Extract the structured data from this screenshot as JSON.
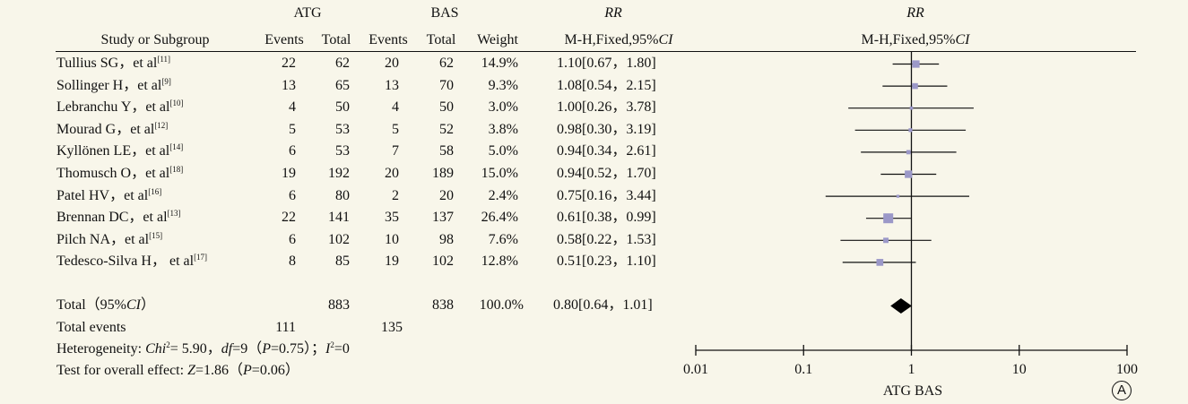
{
  "header": {
    "group1": "ATG",
    "group2": "BAS",
    "rr_left": "RR",
    "rr_right": "RR",
    "col_study": "Study or Subgroup",
    "col_events1": "Events",
    "col_total1": "Total",
    "col_events2": "Events",
    "col_total2": "Total",
    "col_weight": "Weight",
    "method_left_prefix": "M-H,Fixed,95%",
    "method_left_ci": "CI",
    "method_right_prefix": "M-H,Fixed,95%",
    "method_right_ci": "CI"
  },
  "studies": [
    {
      "name": "Tullius SG，et al",
      "ref": "[11]",
      "e1": "22",
      "t1": "62",
      "e2": "20",
      "t2": "62",
      "weight": "14.9%",
      "ci_text": "1.10[0.67，1.80]"
    },
    {
      "name": "Sollinger H，et al",
      "ref": "[9]",
      "e1": "13",
      "t1": "65",
      "e2": "13",
      "t2": "70",
      "weight": "9.3%",
      "ci_text": "1.08[0.54，2.15]"
    },
    {
      "name": "Lebranchu Y，et al",
      "ref": "[10]",
      "e1": "4",
      "t1": "50",
      "e2": "4",
      "t2": "50",
      "weight": "3.0%",
      "ci_text": "1.00[0.26，3.78]"
    },
    {
      "name": "Mourad G，et al",
      "ref": "[12]",
      "e1": "5",
      "t1": "53",
      "e2": "5",
      "t2": "52",
      "weight": "3.8%",
      "ci_text": "0.98[0.30，3.19]"
    },
    {
      "name": "Kyllönen LE，et al",
      "ref": "[14]",
      "e1": "6",
      "t1": "53",
      "e2": "7",
      "t2": "58",
      "weight": "5.0%",
      "ci_text": "0.94[0.34，2.61]"
    },
    {
      "name": "Thomusch O，et al",
      "ref": "[18]",
      "e1": "19",
      "t1": "192",
      "e2": "20",
      "t2": "189",
      "weight": "15.0%",
      "ci_text": "0.94[0.52，1.70]"
    },
    {
      "name": "Patel HV，et al",
      "ref": "[16]",
      "e1": "6",
      "t1": "80",
      "e2": "2",
      "t2": "20",
      "weight": "2.4%",
      "ci_text": "0.75[0.16，3.44]"
    },
    {
      "name": "Brennan DC，et al",
      "ref": "[13]",
      "e1": "22",
      "t1": "141",
      "e2": "35",
      "t2": "137",
      "weight": "26.4%",
      "ci_text": "0.61[0.38，0.99]"
    },
    {
      "name": "Pilch NA，et al",
      "ref": "[15]",
      "e1": "6",
      "t1": "102",
      "e2": "10",
      "t2": "98",
      "weight": "7.6%",
      "ci_text": "0.58[0.22，1.53]"
    },
    {
      "name": "Tedesco-Silva H， et al",
      "ref": "[17]",
      "e1": "8",
      "t1": "85",
      "e2": "19",
      "t2": "102",
      "weight": "12.8%",
      "ci_text": "0.51[0.23，1.10]"
    }
  ],
  "total": {
    "label_prefix": "Total（95%",
    "label_ci": "CI",
    "label_suffix": "）",
    "t1": "883",
    "t2": "838",
    "weight": "100.0%",
    "ci_text": "0.80[0.64，1.01]"
  },
  "total_events": {
    "label": "Total  events",
    "e1": "111",
    "e2": "135"
  },
  "heterogeneity": {
    "prefix": "Heterogeneity: ",
    "chi": "Chi",
    "chi_sup": "2",
    "chi_val": "= 5.90，",
    "df": "df",
    "df_val": "=9（",
    "p": "P",
    "p_val": "=0.75）；",
    "i": "I",
    "i_sup": "2",
    "i_val": "=0"
  },
  "overall": {
    "prefix": "Test for overall effect: ",
    "z": "Z",
    "z_val": "=1.86（",
    "p": "P",
    "p_val": "=0.06）"
  },
  "axis": {
    "label_left": "ATG",
    "label_right": "BAS",
    "panel": "A"
  },
  "chart_data": {
    "type": "forest",
    "scale": "log",
    "xlim": [
      0.01,
      100
    ],
    "ticks": [
      0.01,
      0.1,
      1,
      10,
      100
    ],
    "tick_labels": [
      "0.01",
      "0.1",
      "1",
      "10",
      "100"
    ],
    "reference_line": 1,
    "xlabel": "ATG BAS",
    "studies": [
      {
        "rr": 1.1,
        "lo": 0.67,
        "hi": 1.8,
        "weight": 14.9
      },
      {
        "rr": 1.08,
        "lo": 0.54,
        "hi": 2.15,
        "weight": 9.3
      },
      {
        "rr": 1.0,
        "lo": 0.26,
        "hi": 3.78,
        "weight": 3.0
      },
      {
        "rr": 0.98,
        "lo": 0.3,
        "hi": 3.19,
        "weight": 3.8
      },
      {
        "rr": 0.94,
        "lo": 0.34,
        "hi": 2.61,
        "weight": 5.0
      },
      {
        "rr": 0.94,
        "lo": 0.52,
        "hi": 1.7,
        "weight": 15.0
      },
      {
        "rr": 0.75,
        "lo": 0.16,
        "hi": 3.44,
        "weight": 2.4
      },
      {
        "rr": 0.61,
        "lo": 0.38,
        "hi": 0.99,
        "weight": 26.4
      },
      {
        "rr": 0.58,
        "lo": 0.22,
        "hi": 1.53,
        "weight": 7.6
      },
      {
        "rr": 0.51,
        "lo": 0.23,
        "hi": 1.1,
        "weight": 12.8
      }
    ],
    "total": {
      "rr": 0.8,
      "lo": 0.64,
      "hi": 1.01
    },
    "marker_color": "#9b98c8"
  }
}
